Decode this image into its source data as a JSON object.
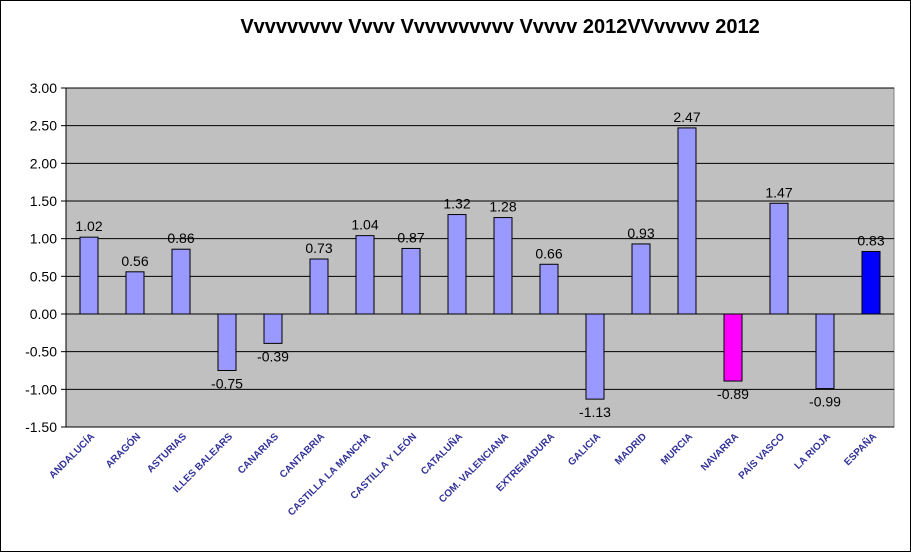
{
  "chart_data": {
    "type": "bar",
    "title": "Vvvvvvvvv Vvvv Vvvvvvvvvv Vvvvv 2012VVvvvvv 2012",
    "xlabel": "",
    "ylabel": "",
    "ylim": [
      -1.5,
      3.0
    ],
    "ytick_step": 0.5,
    "grid": true,
    "categories": [
      "ANDALUCÍA",
      "ARAGÓN",
      "ASTURIAS",
      "ILLES BALEARS",
      "CANARIAS",
      "CANTABRIA",
      "CASTILLA LA MANCHA",
      "CASTILLA Y LEÓN",
      "CATALUÑA",
      "COM. VALENCIANA",
      "EXTREMADURA",
      "GALICIA",
      "MADRID",
      "MURCIA",
      "NAVARRA",
      "PAÍS VASCO",
      "LA RIOJA",
      "ESPAÑA"
    ],
    "values": [
      1.02,
      0.56,
      0.86,
      -0.75,
      -0.39,
      0.73,
      1.04,
      0.87,
      1.32,
      1.28,
      0.66,
      -1.13,
      0.93,
      2.47,
      -0.89,
      1.47,
      -0.99,
      0.83
    ],
    "data_labels": [
      "1.02",
      "0.56",
      "0.86",
      "-0.75",
      "-0.39",
      "0.73",
      "1.04",
      "0.87",
      "1.32",
      "1.28",
      "0.66",
      "-1.13",
      "0.93",
      "2.47",
      "-0.89",
      "1.47",
      "-0.99",
      "0.83"
    ],
    "colors": {
      "default_bar": "#9999ff",
      "highlight": {
        "NAVARRA": "#ff00ff",
        "ESPAÑA": "#0000ff"
      },
      "plot_background": "#c0c0c0",
      "category_label": "#333399"
    }
  }
}
